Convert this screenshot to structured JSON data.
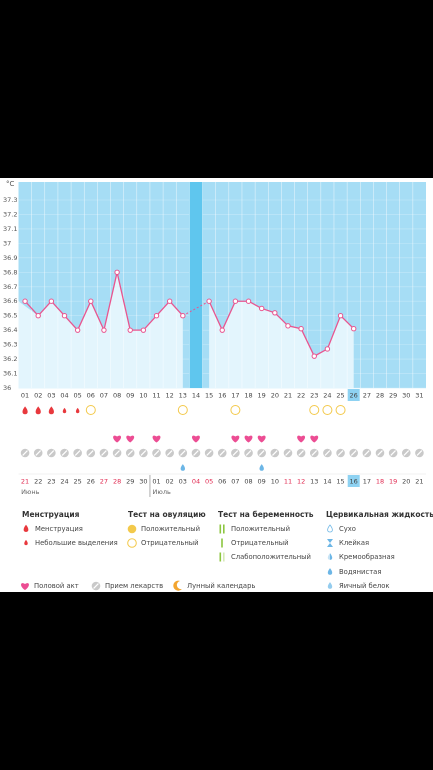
{
  "chart_data": {
    "type": "line",
    "unit": "°С",
    "categories": [
      "01",
      "02",
      "03",
      "04",
      "05",
      "06",
      "07",
      "08",
      "09",
      "10",
      "11",
      "12",
      "13",
      "14",
      "15",
      "16",
      "17",
      "18",
      "19",
      "20",
      "21",
      "22",
      "23",
      "24",
      "25",
      "26",
      "27",
      "28",
      "29",
      "30",
      "31"
    ],
    "values": [
      36.6,
      36.5,
      36.6,
      36.5,
      36.4,
      36.6,
      36.4,
      36.8,
      36.4,
      36.4,
      36.5,
      36.6,
      36.5,
      null,
      36.6,
      36.4,
      36.6,
      36.6,
      36.55,
      36.52,
      36.43,
      36.41,
      36.22,
      36.27,
      36.5,
      36.41,
      null,
      null,
      null,
      null,
      null
    ],
    "color": "#e9558f",
    "ylim": [
      36,
      37.3
    ],
    "yticks": [
      36,
      36.1,
      36.2,
      36.3,
      36.4,
      36.5,
      36.6,
      36.7,
      36.8,
      36.9,
      37,
      37.1,
      37.2,
      37.3
    ],
    "today": "26",
    "events": {
      "menstruation": [
        "01",
        "02",
        "03"
      ],
      "spotting": [
        "04",
        "05"
      ],
      "ovulation_negative": [
        "06",
        "13",
        "17",
        "23",
        "24",
        "25"
      ],
      "intercourse": [
        "08",
        "09",
        "11",
        "14",
        "17",
        "18",
        "19",
        "22",
        "23"
      ],
      "medication": [
        "01",
        "02",
        "03",
        "04",
        "05",
        "06",
        "07",
        "08",
        "09",
        "10",
        "11",
        "12",
        "13",
        "14",
        "15",
        "16",
        "17",
        "18",
        "19",
        "20",
        "21",
        "22",
        "23",
        "24",
        "25",
        "26",
        "27",
        "28",
        "29",
        "30",
        "31"
      ],
      "watery": [
        "13",
        "19"
      ]
    },
    "dates": [
      "21",
      "22",
      "23",
      "24",
      "25",
      "26",
      "27",
      "28",
      "29",
      "30",
      "01",
      "02",
      "03",
      "04",
      "05",
      "06",
      "07",
      "08",
      "09",
      "10",
      "11",
      "12",
      "13",
      "14",
      "15",
      "16",
      "17",
      "18",
      "19",
      "20",
      "21"
    ],
    "weekend": [
      true,
      false,
      false,
      false,
      false,
      false,
      true,
      true,
      false,
      false,
      false,
      false,
      false,
      true,
      true,
      false,
      false,
      false,
      false,
      false,
      true,
      true,
      false,
      false,
      false,
      false,
      false,
      true,
      true,
      false,
      false
    ],
    "months": [
      "Июнь",
      "Июль"
    ]
  },
  "legend": {
    "groups": [
      {
        "title": "Менструация",
        "items": [
          "Менструация",
          "Небольшие выделения"
        ]
      },
      {
        "title": "Тест на овуляцию",
        "items": [
          "Положительный",
          "Отрицательный"
        ]
      },
      {
        "title": "Тест на беременность",
        "items": [
          "Положительный",
          "Отрицательный",
          "Слабоположительный"
        ]
      },
      {
        "title": "Цервикальная жидкость",
        "items": [
          "Сухо",
          "Клейкая",
          "Кремообразная",
          "Водянистая",
          "Яичный белок"
        ]
      }
    ],
    "extra": [
      "Половой акт",
      "Прием лекарств",
      "Лунный календарь"
    ]
  }
}
